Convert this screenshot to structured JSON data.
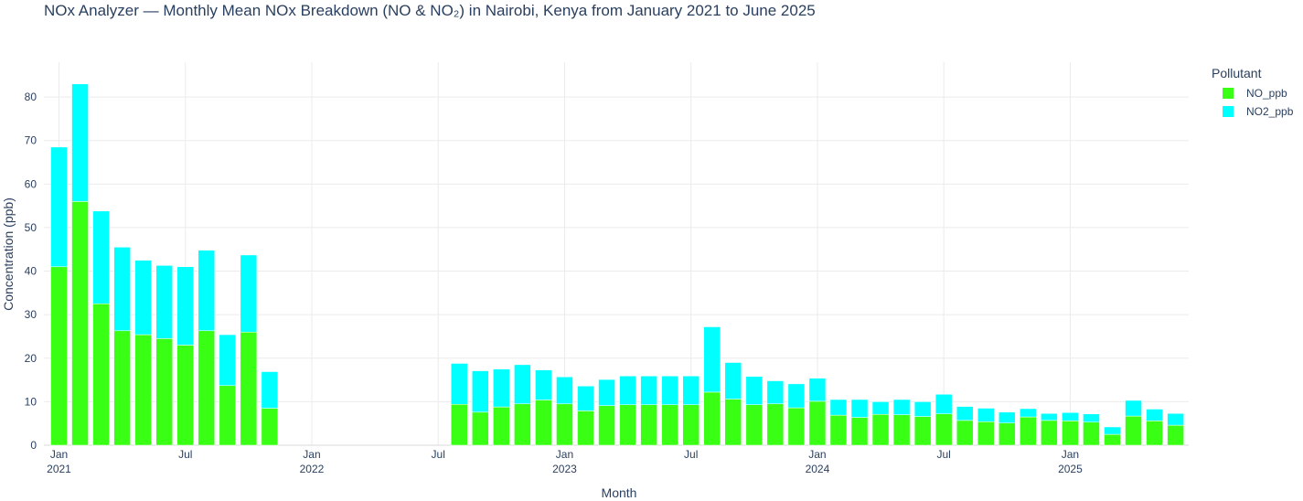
{
  "chart_data": {
    "type": "bar",
    "barmode": "stack",
    "title": "NOx Analyzer — Monthly Mean NOx Breakdown (NO & NO₂) in Nairobi, Kenya from January 2021 to June 2025",
    "xlabel": "Month",
    "ylabel": "Concentration (ppb)",
    "ylim": [
      0,
      88
    ],
    "yticks": [
      0,
      10,
      20,
      30,
      40,
      50,
      60,
      70,
      80
    ],
    "grid": true,
    "legend_title": "Pollutant",
    "legend_position": "top-right",
    "x_tick_labels": [
      {
        "month": "2021-01",
        "line1": "Jan",
        "line2": "2021"
      },
      {
        "month": "2021-07",
        "line1": "Jul",
        "line2": ""
      },
      {
        "month": "2022-01",
        "line1": "Jan",
        "line2": "2022"
      },
      {
        "month": "2022-07",
        "line1": "Jul",
        "line2": ""
      },
      {
        "month": "2023-01",
        "line1": "Jan",
        "line2": "2023"
      },
      {
        "month": "2023-07",
        "line1": "Jul",
        "line2": ""
      },
      {
        "month": "2024-01",
        "line1": "Jan",
        "line2": "2024"
      },
      {
        "month": "2024-07",
        "line1": "Jul",
        "line2": ""
      },
      {
        "month": "2025-01",
        "line1": "Jan",
        "line2": "2025"
      }
    ],
    "categories": [
      "2021-01",
      "2021-02",
      "2021-03",
      "2021-04",
      "2021-05",
      "2021-06",
      "2021-07",
      "2021-08",
      "2021-09",
      "2021-10",
      "2021-11",
      "2021-12",
      "2022-01",
      "2022-02",
      "2022-03",
      "2022-04",
      "2022-05",
      "2022-06",
      "2022-07",
      "2022-08",
      "2022-09",
      "2022-10",
      "2022-11",
      "2022-12",
      "2023-01",
      "2023-02",
      "2023-03",
      "2023-04",
      "2023-05",
      "2023-06",
      "2023-07",
      "2023-08",
      "2023-09",
      "2023-10",
      "2023-11",
      "2023-12",
      "2024-01",
      "2024-02",
      "2024-03",
      "2024-04",
      "2024-05",
      "2024-06",
      "2024-07",
      "2024-08",
      "2024-09",
      "2024-10",
      "2024-11",
      "2024-12",
      "2025-01",
      "2025-02",
      "2025-03",
      "2025-04",
      "2025-05",
      "2025-06"
    ],
    "series": [
      {
        "name": "NO_ppb",
        "color": "#39ff14",
        "values": [
          41,
          56,
          32.5,
          26.3,
          25.4,
          24.5,
          23,
          26.3,
          13.7,
          26,
          8.5,
          null,
          null,
          null,
          null,
          null,
          null,
          null,
          null,
          9.4,
          7.6,
          8.8,
          9.5,
          10.4,
          9.5,
          7.9,
          9.1,
          9.3,
          9.3,
          9.3,
          9.3,
          12.2,
          10.6,
          9.3,
          9.5,
          8.6,
          10.1,
          6.9,
          6.4,
          7.1,
          7,
          6.6,
          7.2,
          5.7,
          5.4,
          5.1,
          6.5,
          5.7,
          5.6,
          5.3,
          2.5,
          6.7,
          5.6,
          4.6
        ]
      },
      {
        "name": "NO2_ppb",
        "color": "#00ffff",
        "values": [
          27.5,
          27,
          21.3,
          19.2,
          17.1,
          16.8,
          18,
          18.5,
          11.7,
          17.7,
          8.4,
          null,
          null,
          null,
          null,
          null,
          null,
          null,
          null,
          9.4,
          9.5,
          8.7,
          9,
          6.9,
          6.2,
          5.7,
          6,
          6.6,
          6.6,
          6.6,
          6.6,
          15,
          8.4,
          6.5,
          5.3,
          5.5,
          5.3,
          3.6,
          4.1,
          2.9,
          3.5,
          3.4,
          4.5,
          3.2,
          3.1,
          2.5,
          1.9,
          1.6,
          1.9,
          1.9,
          1.7,
          3.6,
          2.7,
          2.7
        ]
      }
    ]
  }
}
